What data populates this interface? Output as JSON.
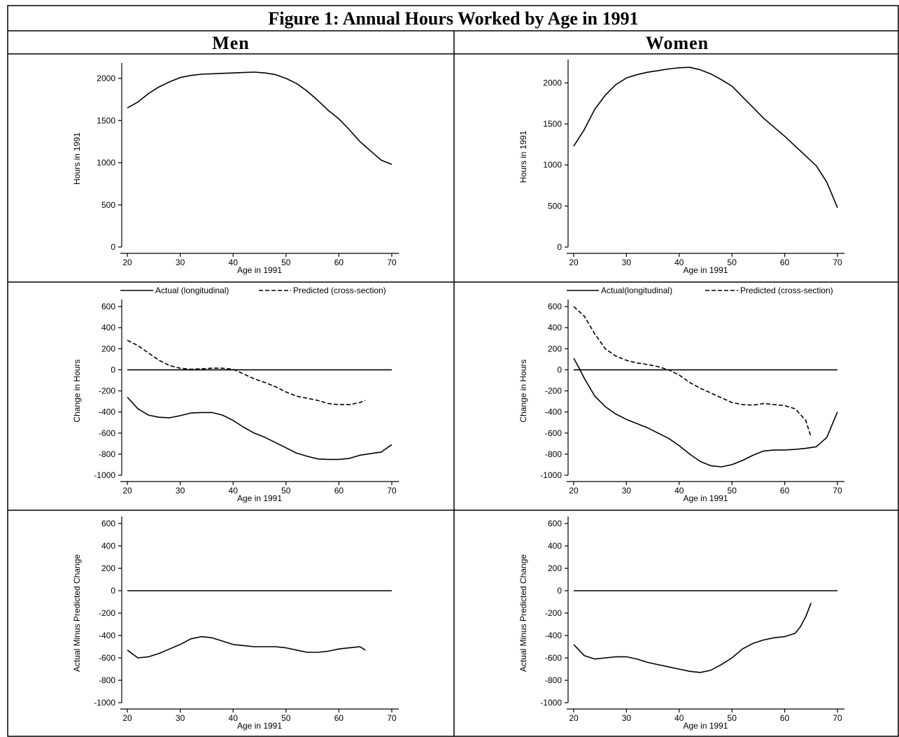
{
  "figure": {
    "title": "Figure 1: Annual Hours Worked by Age in 1991",
    "columns": [
      "Men",
      "Women"
    ]
  },
  "chart_data": [
    {
      "id": "men-hours",
      "type": "line",
      "column": "Men",
      "row": 1,
      "xlabel": "Age in 1991",
      "ylabel": "Hours in 1991",
      "xlim": [
        20,
        70
      ],
      "ylim": [
        0,
        2100
      ],
      "xticks": [
        20,
        30,
        40,
        50,
        60,
        70
      ],
      "yticks": [
        0,
        500,
        1000,
        1500,
        2000
      ],
      "series": [
        {
          "style": "solid",
          "x": [
            20,
            22,
            24,
            26,
            28,
            30,
            32,
            34,
            36,
            38,
            40,
            42,
            44,
            46,
            48,
            50,
            52,
            54,
            56,
            58,
            60,
            62,
            64,
            66,
            68,
            70
          ],
          "y": [
            1650,
            1720,
            1820,
            1900,
            1960,
            2010,
            2035,
            2050,
            2055,
            2060,
            2065,
            2070,
            2075,
            2065,
            2045,
            2000,
            1940,
            1850,
            1740,
            1620,
            1520,
            1390,
            1250,
            1140,
            1030,
            980
          ]
        }
      ]
    },
    {
      "id": "women-hours",
      "type": "line",
      "column": "Women",
      "row": 1,
      "xlabel": "Age in 1991",
      "ylabel": "Hours in 1991",
      "xlim": [
        20,
        70
      ],
      "ylim": [
        0,
        2200
      ],
      "xticks": [
        20,
        30,
        40,
        50,
        60,
        70
      ],
      "yticks": [
        0,
        500,
        1000,
        1500,
        2000
      ],
      "series": [
        {
          "style": "solid",
          "x": [
            20,
            22,
            24,
            26,
            28,
            30,
            32,
            34,
            36,
            38,
            40,
            42,
            44,
            46,
            48,
            50,
            52,
            54,
            56,
            58,
            60,
            62,
            64,
            66,
            68,
            70
          ],
          "y": [
            1230,
            1430,
            1680,
            1850,
            1980,
            2060,
            2100,
            2130,
            2150,
            2170,
            2185,
            2190,
            2160,
            2110,
            2040,
            1960,
            1830,
            1700,
            1570,
            1460,
            1350,
            1230,
            1110,
            990,
            790,
            480
          ]
        }
      ]
    },
    {
      "id": "men-change",
      "type": "line",
      "column": "Men",
      "row": 2,
      "xlabel": "Age in 1991",
      "ylabel": "Change in Hours",
      "xlim": [
        20,
        70
      ],
      "ylim": [
        -1000,
        600
      ],
      "xticks": [
        20,
        30,
        40,
        50,
        60,
        70
      ],
      "yticks": [
        -1000,
        -800,
        -600,
        -400,
        -200,
        0,
        200,
        400,
        600
      ],
      "legend": [
        "Actual (longitudinal)",
        "Predicted (cross-section)"
      ],
      "series": [
        {
          "name": "Actual (longitudinal)",
          "style": "solid",
          "x": [
            20,
            22,
            24,
            26,
            28,
            30,
            32,
            34,
            36,
            38,
            40,
            42,
            44,
            46,
            48,
            50,
            52,
            54,
            56,
            58,
            60,
            62,
            64,
            66,
            68,
            70
          ],
          "y": [
            -260,
            -370,
            -430,
            -450,
            -455,
            -435,
            -410,
            -405,
            -405,
            -430,
            -480,
            -545,
            -600,
            -640,
            -690,
            -740,
            -790,
            -820,
            -845,
            -850,
            -850,
            -840,
            -810,
            -795,
            -780,
            -710
          ]
        },
        {
          "name": "Predicted (cross-section)",
          "style": "dashed",
          "x": [
            20,
            22,
            24,
            26,
            28,
            30,
            32,
            34,
            36,
            38,
            40,
            42,
            44,
            46,
            48,
            50,
            52,
            54,
            56,
            58,
            60,
            62,
            64,
            65
          ],
          "y": [
            280,
            230,
            160,
            90,
            40,
            15,
            5,
            10,
            15,
            15,
            5,
            -40,
            -85,
            -120,
            -160,
            -210,
            -250,
            -270,
            -290,
            -320,
            -330,
            -330,
            -310,
            -290
          ]
        },
        {
          "name": "zero",
          "style": "solid",
          "x": [
            20,
            70
          ],
          "y": [
            0,
            0
          ]
        }
      ]
    },
    {
      "id": "women-change",
      "type": "line",
      "column": "Women",
      "row": 2,
      "xlabel": "Age in 1991",
      "ylabel": "Change in Hours",
      "xlim": [
        20,
        70
      ],
      "ylim": [
        -1000,
        600
      ],
      "xticks": [
        20,
        30,
        40,
        50,
        60,
        70
      ],
      "yticks": [
        -1000,
        -800,
        -600,
        -400,
        -200,
        0,
        200,
        400,
        600
      ],
      "legend": [
        "Actual(longitudinal)",
        "Predicted (cross-section)"
      ],
      "series": [
        {
          "name": "Actual(longitudinal)",
          "style": "solid",
          "x": [
            20,
            21,
            22,
            24,
            26,
            28,
            30,
            32,
            34,
            36,
            38,
            40,
            42,
            44,
            46,
            48,
            50,
            52,
            54,
            56,
            58,
            60,
            62,
            64,
            66,
            68,
            70
          ],
          "y": [
            110,
            20,
            -80,
            -250,
            -350,
            -420,
            -470,
            -510,
            -550,
            -600,
            -650,
            -720,
            -800,
            -870,
            -910,
            -920,
            -900,
            -860,
            -810,
            -770,
            -760,
            -760,
            -755,
            -745,
            -730,
            -640,
            -400
          ]
        },
        {
          "name": "Predicted (cross-section)",
          "style": "dashed",
          "x": [
            20,
            22,
            24,
            26,
            28,
            30,
            32,
            34,
            36,
            38,
            40,
            42,
            44,
            46,
            48,
            50,
            52,
            54,
            56,
            58,
            60,
            62,
            64,
            65
          ],
          "y": [
            600,
            510,
            340,
            200,
            130,
            90,
            65,
            50,
            30,
            0,
            -50,
            -120,
            -175,
            -220,
            -265,
            -310,
            -330,
            -335,
            -320,
            -330,
            -340,
            -370,
            -480,
            -640
          ]
        },
        {
          "name": "zero",
          "style": "solid",
          "x": [
            20,
            70
          ],
          "y": [
            0,
            0
          ]
        }
      ]
    },
    {
      "id": "men-diff",
      "type": "line",
      "column": "Men",
      "row": 3,
      "xlabel": "Age in 1991",
      "ylabel": "Actual Minus Predicted Change",
      "xlim": [
        20,
        70
      ],
      "ylim": [
        -1000,
        600
      ],
      "xticks": [
        20,
        30,
        40,
        50,
        60,
        70
      ],
      "yticks": [
        -1000,
        -800,
        -600,
        -400,
        -200,
        0,
        200,
        400,
        600
      ],
      "series": [
        {
          "style": "solid",
          "x": [
            20,
            22,
            24,
            26,
            28,
            30,
            32,
            34,
            36,
            38,
            40,
            42,
            44,
            46,
            48,
            50,
            52,
            54,
            56,
            58,
            60,
            62,
            64,
            65
          ],
          "y": [
            -530,
            -600,
            -590,
            -560,
            -520,
            -480,
            -430,
            -410,
            -420,
            -450,
            -480,
            -490,
            -500,
            -500,
            -500,
            -510,
            -530,
            -550,
            -550,
            -540,
            -520,
            -510,
            -500,
            -530
          ]
        },
        {
          "name": "zero",
          "style": "solid",
          "x": [
            20,
            70
          ],
          "y": [
            0,
            0
          ]
        }
      ]
    },
    {
      "id": "women-diff",
      "type": "line",
      "column": "Women",
      "row": 3,
      "xlabel": "Age in 1991",
      "ylabel": "Actual Minus Predicted Change",
      "xlim": [
        20,
        70
      ],
      "ylim": [
        -1000,
        600
      ],
      "xticks": [
        20,
        30,
        40,
        50,
        60,
        70
      ],
      "yticks": [
        -1000,
        -800,
        -600,
        -400,
        -200,
        0,
        200,
        400,
        600
      ],
      "series": [
        {
          "style": "solid",
          "x": [
            20,
            22,
            24,
            26,
            28,
            30,
            32,
            34,
            36,
            38,
            40,
            42,
            44,
            46,
            48,
            50,
            52,
            54,
            56,
            58,
            60,
            62,
            63,
            64,
            65
          ],
          "y": [
            -480,
            -580,
            -610,
            -600,
            -590,
            -590,
            -610,
            -640,
            -660,
            -680,
            -700,
            -720,
            -730,
            -710,
            -660,
            -600,
            -520,
            -470,
            -440,
            -420,
            -410,
            -380,
            -320,
            -230,
            -110
          ]
        },
        {
          "name": "zero",
          "style": "solid",
          "x": [
            20,
            70
          ],
          "y": [
            0,
            0
          ]
        }
      ]
    }
  ]
}
